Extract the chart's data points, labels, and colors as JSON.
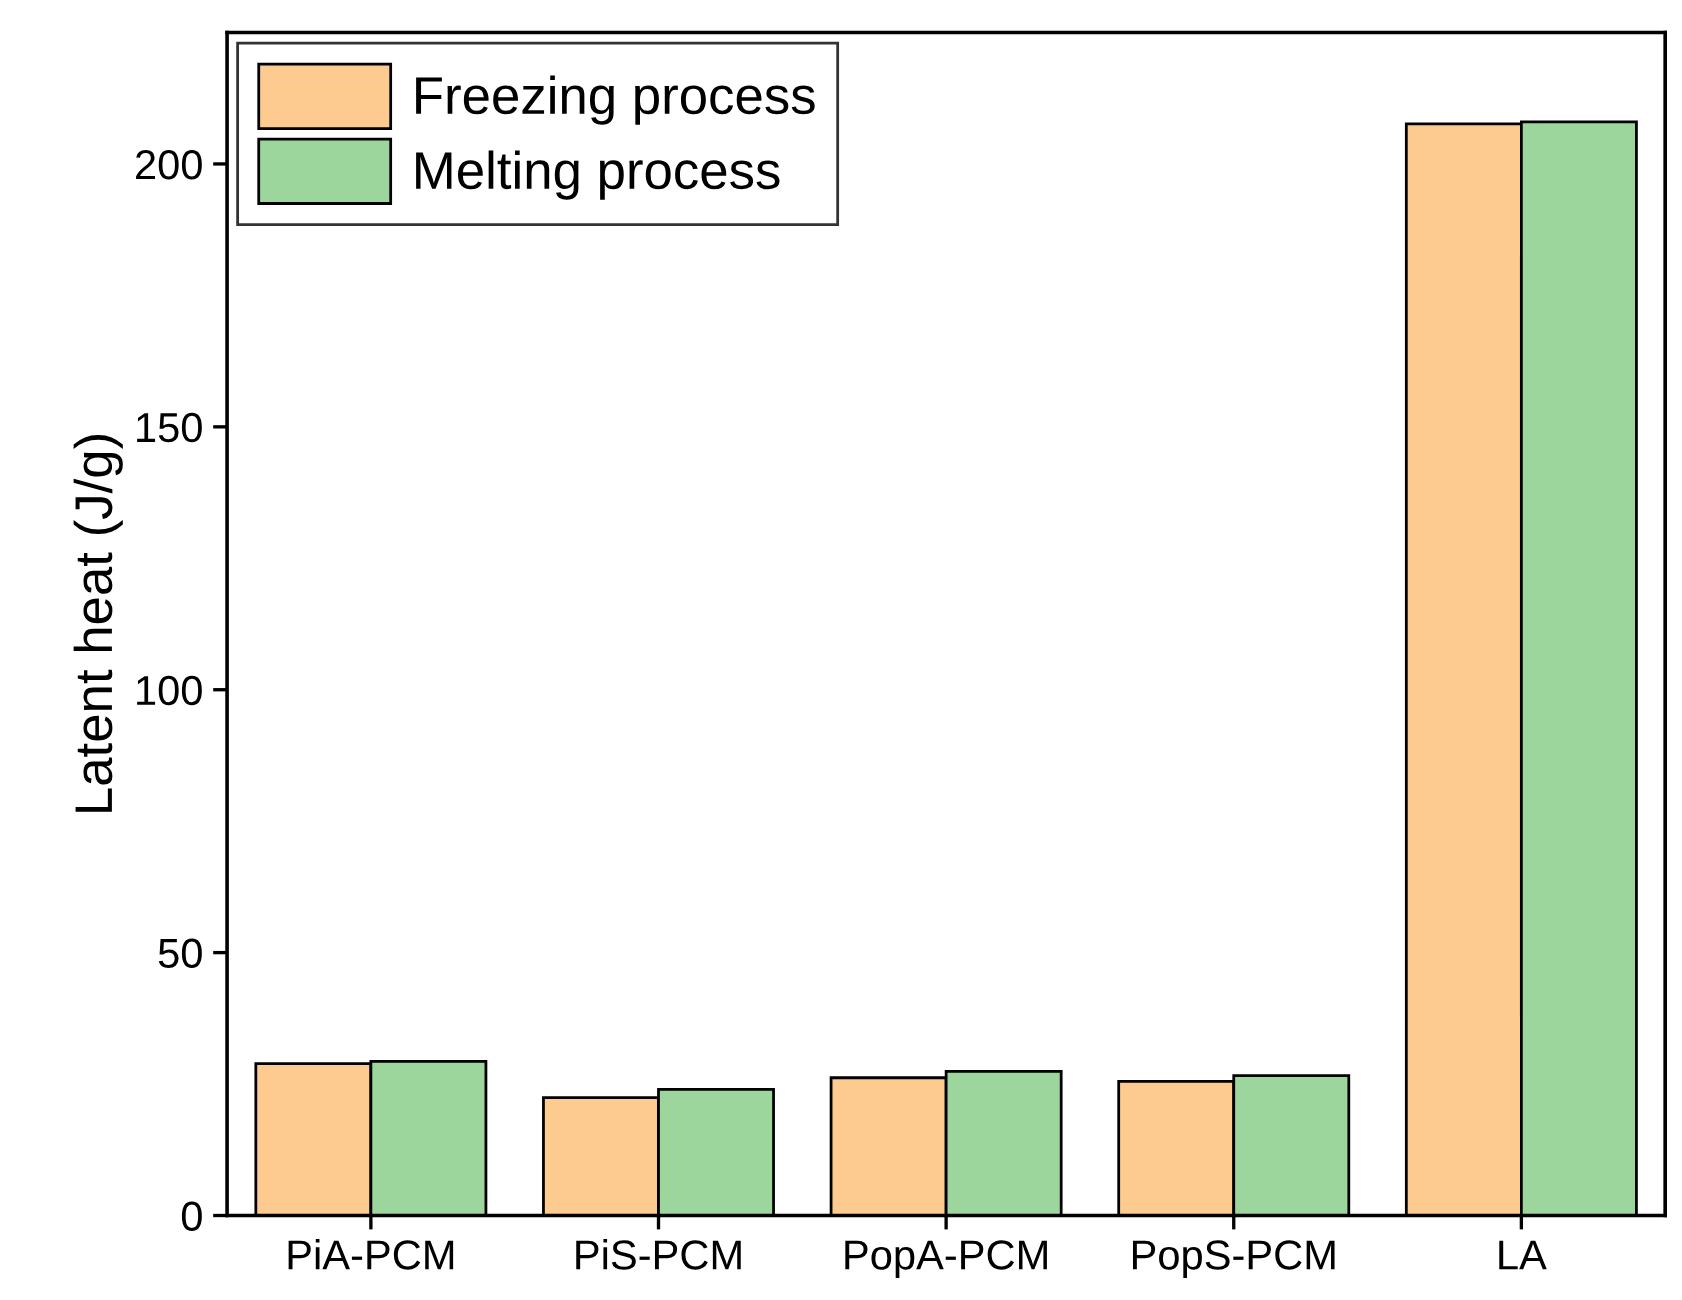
{
  "chart_data": {
    "type": "bar",
    "ylabel": "Latent heat (J/g)",
    "categories": [
      "PiA-PCM",
      "PiS-PCM",
      "PopA-PCM",
      "PopS-PCM",
      "LA"
    ],
    "series": [
      {
        "name": "Freezing process",
        "color": "#fdca8f",
        "values": [
          28.9,
          22.4,
          26.2,
          25.5,
          207.6
        ]
      },
      {
        "name": "Melting process",
        "color": "#9dd69d",
        "values": [
          29.3,
          24.0,
          27.4,
          26.6,
          208.0
        ]
      }
    ],
    "ylim": [
      0,
      225
    ],
    "yticks": [
      0,
      50,
      100,
      150,
      200
    ],
    "grid": false,
    "legend": "top left"
  }
}
